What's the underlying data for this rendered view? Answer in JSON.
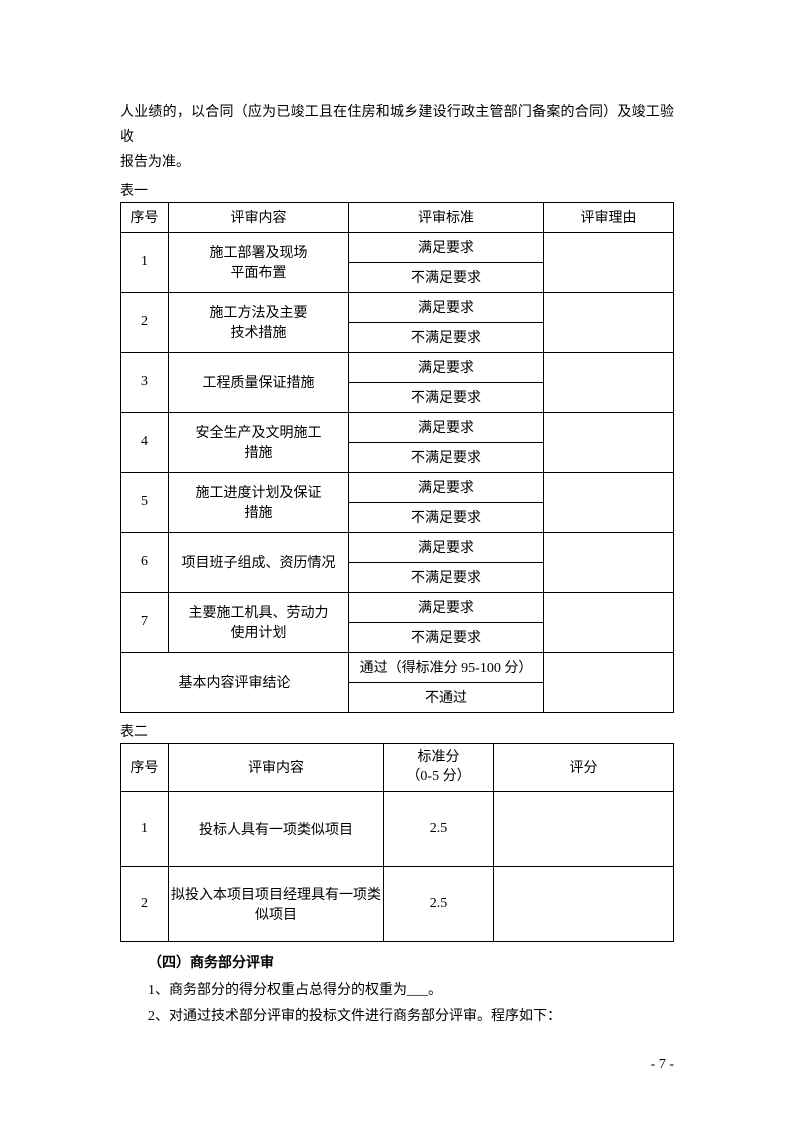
{
  "intro": {
    "line1": "人业绩的，以合同（应为已竣工且在住房和城乡建设行政主管部门备案的合同）及竣工验收",
    "line2": "报告为准。"
  },
  "table1": {
    "label": "表一",
    "headers": {
      "seq": "序号",
      "content": "评审内容",
      "standard": "评审标准",
      "reason": "评审理由"
    },
    "rows": [
      {
        "seq": "1",
        "content_l1": "施工部署及现场",
        "content_l2": "平面布置",
        "pass": "满足要求",
        "fail": "不满足要求"
      },
      {
        "seq": "2",
        "content_l1": "施工方法及主要",
        "content_l2": "技术措施",
        "pass": "满足要求",
        "fail": "不满足要求"
      },
      {
        "seq": "3",
        "content_l1": "工程质量保证措施",
        "content_l2": "",
        "pass": "满足要求",
        "fail": "不满足要求"
      },
      {
        "seq": "4",
        "content_l1": "安全生产及文明施工",
        "content_l2": "措施",
        "pass": "满足要求",
        "fail": "不满足要求"
      },
      {
        "seq": "5",
        "content_l1": "施工进度计划及保证",
        "content_l2": "措施",
        "pass": "满足要求",
        "fail": "不满足要求"
      },
      {
        "seq": "6",
        "content_l1": "项目班子组成、资历情况",
        "content_l2": "",
        "pass": "满足要求",
        "fail": "不满足要求"
      },
      {
        "seq": "7",
        "content_l1": "主要施工机具、劳动力",
        "content_l2": "使用计划",
        "pass": "满足要求",
        "fail": "不满足要求"
      }
    ],
    "conclusion": {
      "label": "基本内容评审结论",
      "pass": "通过（得标准分 95-100 分）",
      "fail": "不通过"
    }
  },
  "table2": {
    "label": "表二",
    "headers": {
      "seq": "序号",
      "content": "评审内容",
      "score_l1": "标准分",
      "score_l2": "（0-5 分）",
      "rating": "评分"
    },
    "rows": [
      {
        "seq": "1",
        "content": "投标人具有一项类似项目",
        "score": "2.5"
      },
      {
        "seq": "2",
        "content_l1": "拟投入本项目项目经理具有一项类",
        "content_l2": "似项目",
        "score": "2.5"
      }
    ]
  },
  "section": {
    "title": "（四）商务部分评审",
    "line1": "1、商务部分的得分权重占总得分的权重为___。",
    "line2": "2、对通过技术部分评审的投标文件进行商务部分评审。程序如下："
  },
  "pageNumber": "- 7 -"
}
